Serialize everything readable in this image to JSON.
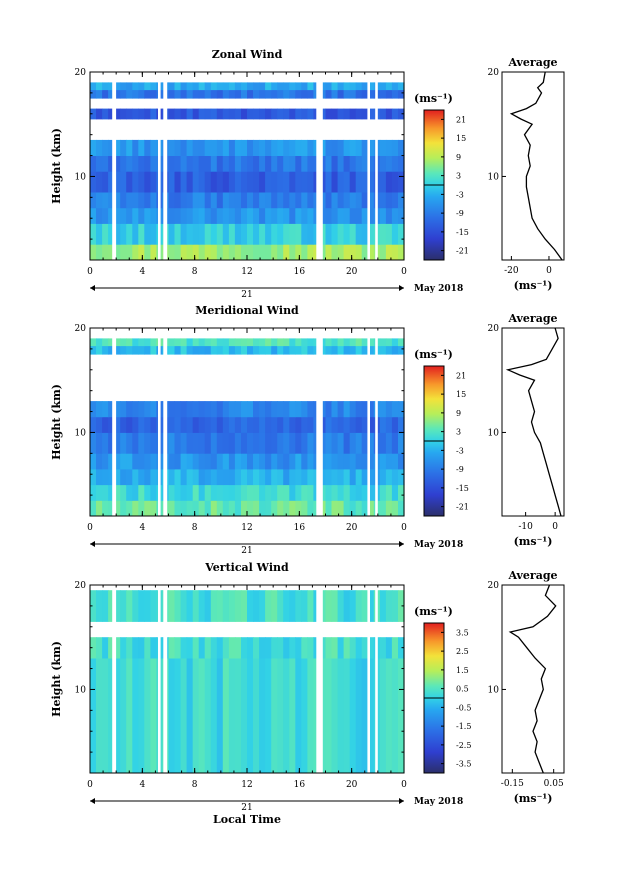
{
  "chart_data": [
    {
      "type": "heatmap",
      "title": "Zonal Wind",
      "ylabel": "Height (km)",
      "xlabel": "",
      "x_ticks": [
        "0",
        "4",
        "8",
        "12",
        "16",
        "20",
        "0"
      ],
      "y_ticks": [
        "20",
        "10"
      ],
      "xlim": [
        0,
        24
      ],
      "ylim": [
        2,
        20
      ],
      "date_label": "21",
      "month_label": "May 2018",
      "colorbar": {
        "unit": "(ms⁻¹)",
        "ticks": [
          "21",
          "15",
          "9",
          "3",
          "-3",
          "-9",
          "-15",
          "-21"
        ],
        "range": [
          -24,
          24
        ]
      },
      "bands": [
        {
          "z0": 2.0,
          "z1": 3.5,
          "v": 8
        },
        {
          "z0": 3.5,
          "z1": 5.5,
          "v": 0
        },
        {
          "z0": 5.5,
          "z1": 7.0,
          "v": -6
        },
        {
          "z0": 7.0,
          "z1": 8.5,
          "v": -9
        },
        {
          "z0": 8.5,
          "z1": 10.5,
          "v": -13
        },
        {
          "z0": 10.5,
          "z1": 12.0,
          "v": -10
        },
        {
          "z0": 12.0,
          "z1": 13.5,
          "v": -6
        },
        {
          "z0": 15.5,
          "z1": 16.5,
          "v": -14
        },
        {
          "z0": 17.5,
          "z1": 18.3,
          "v": -10
        },
        {
          "z0": 18.3,
          "z1": 19.0,
          "v": -4
        }
      ],
      "gaps": [
        [
          1.7,
          2.0
        ],
        [
          5.2,
          5.4
        ],
        [
          5.6,
          5.9
        ],
        [
          17.3,
          17.8
        ],
        [
          21.2,
          21.4
        ],
        [
          21.8,
          22.0
        ]
      ],
      "average": {
        "xlabel": "(ms⁻¹)",
        "title": "Average",
        "x_ticks": [
          "-20",
          "0"
        ],
        "y_ticks": [
          "20",
          "10"
        ],
        "xlim": [
          -25,
          8
        ],
        "ylim": [
          2,
          20
        ],
        "profile": [
          [
            2.0,
            7
          ],
          [
            3.0,
            3
          ],
          [
            4.0,
            -2
          ],
          [
            5.0,
            -6
          ],
          [
            6.0,
            -9
          ],
          [
            7.0,
            -10
          ],
          [
            8.0,
            -11
          ],
          [
            9.0,
            -12
          ],
          [
            10.0,
            -12
          ],
          [
            11.0,
            -10
          ],
          [
            12.0,
            -11
          ],
          [
            13.0,
            -10
          ],
          [
            14.0,
            -13
          ],
          [
            15.0,
            -9
          ],
          [
            15.5,
            -15
          ],
          [
            16.0,
            -20
          ],
          [
            16.5,
            -12
          ],
          [
            17.0,
            -7
          ],
          [
            18.0,
            -4
          ],
          [
            18.5,
            -6
          ],
          [
            19.0,
            -3
          ],
          [
            20.0,
            -2
          ]
        ]
      }
    },
    {
      "type": "heatmap",
      "title": "Meridional Wind",
      "ylabel": "Height (km)",
      "xlabel": "",
      "x_ticks": [
        "0",
        "4",
        "8",
        "12",
        "16",
        "20",
        "0"
      ],
      "y_ticks": [
        "20",
        "10"
      ],
      "xlim": [
        0,
        24
      ],
      "ylim": [
        2,
        20
      ],
      "date_label": "21",
      "month_label": "May 2018",
      "colorbar": {
        "unit": "(ms⁻¹)",
        "ticks": [
          "21",
          "15",
          "9",
          "3",
          "-3",
          "-9",
          "-15",
          "-21"
        ],
        "range": [
          -24,
          24
        ]
      },
      "bands": [
        {
          "z0": 2.0,
          "z1": 3.5,
          "v": 4
        },
        {
          "z0": 3.5,
          "z1": 5.0,
          "v": 1
        },
        {
          "z0": 5.0,
          "z1": 6.5,
          "v": -3
        },
        {
          "z0": 6.5,
          "z1": 8.0,
          "v": -6
        },
        {
          "z0": 8.0,
          "z1": 10.0,
          "v": -9
        },
        {
          "z0": 10.0,
          "z1": 11.5,
          "v": -12
        },
        {
          "z0": 11.5,
          "z1": 13.0,
          "v": -8
        },
        {
          "z0": 17.5,
          "z1": 18.3,
          "v": -2
        },
        {
          "z0": 18.3,
          "z1": 19.0,
          "v": 3
        }
      ],
      "gaps": [
        [
          1.7,
          2.0
        ],
        [
          5.2,
          5.4
        ],
        [
          5.6,
          5.9
        ],
        [
          17.3,
          17.8
        ],
        [
          21.2,
          21.4
        ],
        [
          21.8,
          22.0
        ]
      ],
      "average": {
        "xlabel": "(ms⁻¹)",
        "title": "Average",
        "x_ticks": [
          "-10",
          "0"
        ],
        "y_ticks": [
          "20",
          "10"
        ],
        "xlim": [
          -18,
          3
        ],
        "ylim": [
          2,
          20
        ],
        "profile": [
          [
            2.0,
            2
          ],
          [
            3.0,
            1
          ],
          [
            4.0,
            0
          ],
          [
            5.0,
            -1
          ],
          [
            6.0,
            -2
          ],
          [
            7.0,
            -3
          ],
          [
            8.0,
            -4
          ],
          [
            9.0,
            -5
          ],
          [
            10.0,
            -7
          ],
          [
            11.0,
            -8
          ],
          [
            12.0,
            -7
          ],
          [
            13.0,
            -8
          ],
          [
            14.0,
            -9
          ],
          [
            15.0,
            -7
          ],
          [
            15.5,
            -12
          ],
          [
            16.0,
            -16
          ],
          [
            16.5,
            -8
          ],
          [
            17.0,
            -3
          ],
          [
            18.0,
            -1
          ],
          [
            19.0,
            1
          ],
          [
            20.0,
            0
          ]
        ]
      }
    },
    {
      "type": "heatmap",
      "title": "Vertical Wind",
      "ylabel": "Height (km)",
      "xlabel": "Local Time",
      "x_ticks": [
        "0",
        "4",
        "8",
        "12",
        "16",
        "20",
        "0"
      ],
      "y_ticks": [
        "20",
        "10"
      ],
      "xlim": [
        0,
        24
      ],
      "ylim": [
        2,
        20
      ],
      "date_label": "21",
      "month_label": "May 2018",
      "colorbar": {
        "unit": "(ms⁻¹)",
        "ticks": [
          "3.5",
          "2.5",
          "1.5",
          "0.5",
          "-0.5",
          "-1.5",
          "-2.5",
          "-3.5"
        ],
        "range": [
          -4,
          4
        ]
      },
      "bands": [
        {
          "z0": 2.0,
          "z1": 13.0,
          "v": 0.2
        },
        {
          "z0": 13.0,
          "z1": 15.0,
          "v": 0.3
        },
        {
          "z0": 16.5,
          "z1": 19.5,
          "v": 0.3
        }
      ],
      "gaps": [
        [
          1.7,
          2.0
        ],
        [
          5.2,
          5.4
        ],
        [
          5.6,
          5.9
        ],
        [
          17.3,
          17.8
        ],
        [
          21.2,
          21.4
        ],
        [
          21.8,
          22.0
        ]
      ],
      "average": {
        "xlabel": "(ms⁻¹)",
        "title": "Average",
        "x_ticks": [
          "-0.15",
          "0.05"
        ],
        "y_ticks": [
          "20",
          "10"
        ],
        "xlim": [
          -0.2,
          0.1
        ],
        "ylim": [
          2,
          20
        ],
        "profile": [
          [
            2.0,
            0.0
          ],
          [
            3.0,
            -0.02
          ],
          [
            4.0,
            -0.04
          ],
          [
            5.0,
            -0.03
          ],
          [
            6.0,
            -0.05
          ],
          [
            7.0,
            -0.03
          ],
          [
            8.0,
            -0.04
          ],
          [
            9.0,
            -0.02
          ],
          [
            10.0,
            0.0
          ],
          [
            11.0,
            -0.01
          ],
          [
            12.0,
            0.01
          ],
          [
            13.0,
            -0.04
          ],
          [
            14.0,
            -0.08
          ],
          [
            15.0,
            -0.12
          ],
          [
            15.5,
            -0.16
          ],
          [
            16.0,
            -0.05
          ],
          [
            17.0,
            0.02
          ],
          [
            18.0,
            0.06
          ],
          [
            19.0,
            0.01
          ],
          [
            20.0,
            0.03
          ]
        ]
      }
    }
  ]
}
